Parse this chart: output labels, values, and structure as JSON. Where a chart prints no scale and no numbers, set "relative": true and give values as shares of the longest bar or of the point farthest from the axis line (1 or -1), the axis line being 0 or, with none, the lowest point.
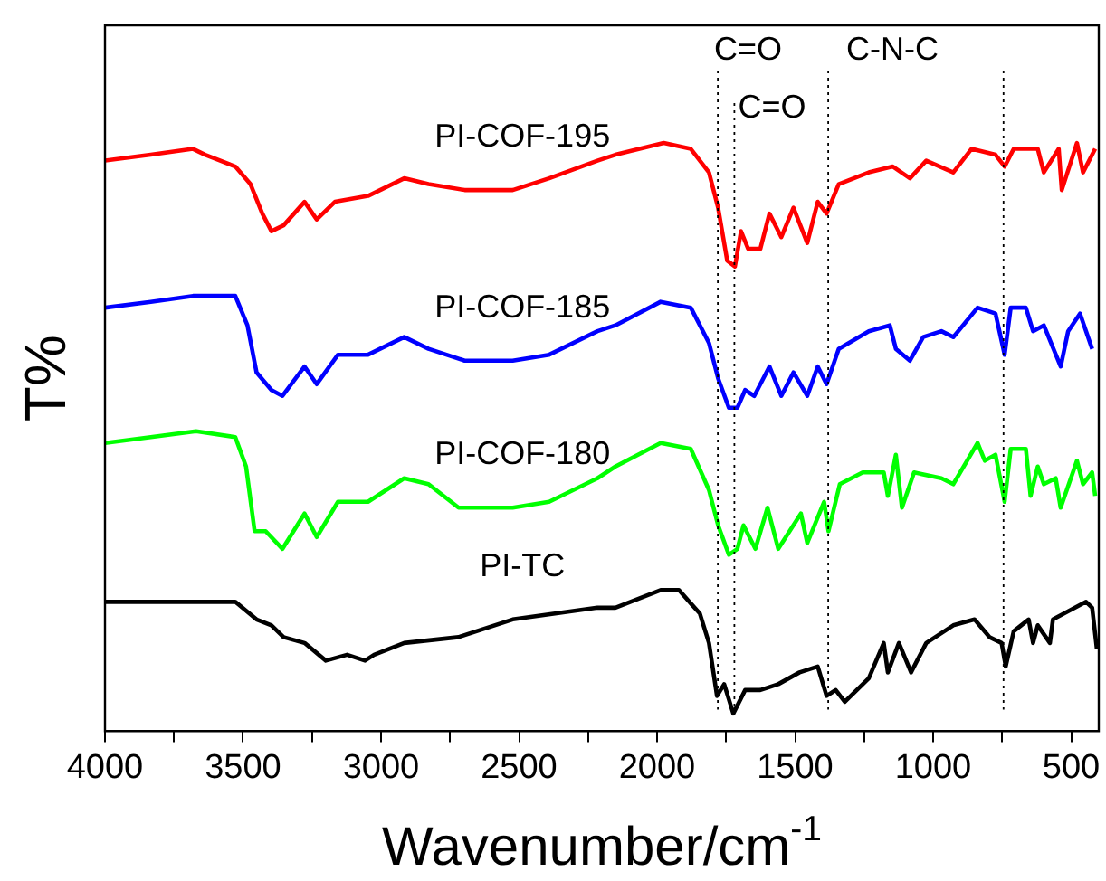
{
  "chart_data": {
    "type": "line",
    "relative": true,
    "xlabel": "Wavenumber/cm$^{-1}$",
    "ylabel": "T%",
    "xlim": [
      4000,
      400
    ],
    "xticks": [
      4000,
      {
        "value": 3750,
        "label": null
      },
      3500,
      {
        "value": 3250,
        "label": null
      },
      3000,
      {
        "value": 2750,
        "label": null
      },
      2500,
      {
        "value": 2250,
        "label": null
      },
      2000,
      {
        "value": 1750,
        "label": null
      },
      1500,
      {
        "value": 1250,
        "label": null
      },
      1000,
      {
        "value": 750,
        "label": null
      },
      500
    ],
    "ref_lines": [
      {
        "axis": "x",
        "value": 1780,
        "label": "C=O",
        "line_style": "dotted"
      },
      {
        "axis": "x",
        "value": 1720,
        "label": "C=O",
        "line_style": "dotted"
      },
      {
        "axis": "x",
        "value": 1380,
        "label": "C-N-C",
        "line_style": "dotted"
      },
      {
        "axis": "x",
        "value": 745,
        "label": null,
        "line_style": "dotted"
      }
    ],
    "series": [
      {
        "name": "PI-COF-195",
        "color": "#ff0000",
        "x": [
          4000,
          3834,
          3681,
          3637,
          3528,
          3473,
          3430,
          3397,
          3353,
          3277,
          3233,
          3167,
          3047,
          2916,
          2828,
          2697,
          2523,
          2391,
          2216,
          2151,
          1976,
          1878,
          1812,
          1779,
          1746,
          1718,
          1696,
          1670,
          1626,
          1593,
          1550,
          1506,
          1456,
          1418,
          1386,
          1342,
          1233,
          1146,
          1084,
          1025,
          927,
          861,
          774,
          741,
          708,
          621,
          599,
          545,
          534,
          479,
          457,
          413
        ],
        "values": [
          0.97,
          0.98,
          0.99,
          0.98,
          0.96,
          0.93,
          0.88,
          0.85,
          0.86,
          0.9,
          0.87,
          0.9,
          0.91,
          0.94,
          0.93,
          0.92,
          0.92,
          0.94,
          0.97,
          0.98,
          1.0,
          0.99,
          0.95,
          0.89,
          0.8,
          0.79,
          0.85,
          0.82,
          0.82,
          0.88,
          0.84,
          0.89,
          0.83,
          0.9,
          0.88,
          0.93,
          0.95,
          0.96,
          0.94,
          0.97,
          0.95,
          0.99,
          0.98,
          0.96,
          0.99,
          0.99,
          0.95,
          0.99,
          0.92,
          1.0,
          0.95,
          0.99
        ]
      },
      {
        "name": "PI-COF-185",
        "color": "#0000ff",
        "x": [
          4000,
          3834,
          3681,
          3528,
          3484,
          3451,
          3397,
          3357,
          3277,
          3233,
          3156,
          3047,
          2916,
          2828,
          2697,
          2523,
          2391,
          2216,
          2151,
          1987,
          1878,
          1812,
          1779,
          1740,
          1709,
          1681,
          1648,
          1593,
          1550,
          1506,
          1456,
          1418,
          1386,
          1342,
          1233,
          1157,
          1135,
          1084,
          1036,
          970,
          927,
          839,
          774,
          741,
          719,
          664,
          638,
          599,
          538,
          511,
          468,
          424
        ],
        "values": [
          0.72,
          0.73,
          0.74,
          0.74,
          0.69,
          0.61,
          0.58,
          0.57,
          0.62,
          0.59,
          0.64,
          0.64,
          0.67,
          0.65,
          0.63,
          0.63,
          0.64,
          0.68,
          0.69,
          0.73,
          0.72,
          0.66,
          0.6,
          0.55,
          0.55,
          0.58,
          0.57,
          0.62,
          0.57,
          0.61,
          0.57,
          0.62,
          0.59,
          0.65,
          0.68,
          0.69,
          0.65,
          0.63,
          0.67,
          0.68,
          0.67,
          0.72,
          0.71,
          0.64,
          0.72,
          0.72,
          0.68,
          0.69,
          0.62,
          0.68,
          0.71,
          0.65
        ]
      },
      {
        "name": "PI-COF-180",
        "color": "#00ff00",
        "x": [
          4000,
          3834,
          3670,
          3528,
          3489,
          3458,
          3418,
          3357,
          3277,
          3233,
          3156,
          3047,
          2916,
          2828,
          2719,
          2523,
          2391,
          2216,
          2151,
          1987,
          1878,
          1812,
          1779,
          1740,
          1709,
          1687,
          1644,
          1600,
          1561,
          1479,
          1456,
          1395,
          1379,
          1338,
          1255,
          1179,
          1164,
          1135,
          1113,
          1069,
          970,
          927,
          839,
          813,
          774,
          741,
          719,
          664,
          647,
          621,
          599,
          556,
          538,
          479,
          457,
          424,
          413
        ],
        "values": [
          0.49,
          0.5,
          0.51,
          0.5,
          0.45,
          0.34,
          0.34,
          0.31,
          0.37,
          0.33,
          0.39,
          0.39,
          0.43,
          0.42,
          0.38,
          0.38,
          0.39,
          0.43,
          0.45,
          0.49,
          0.48,
          0.41,
          0.35,
          0.3,
          0.31,
          0.35,
          0.31,
          0.38,
          0.31,
          0.37,
          0.32,
          0.39,
          0.34,
          0.42,
          0.44,
          0.44,
          0.4,
          0.47,
          0.38,
          0.44,
          0.43,
          0.42,
          0.49,
          0.46,
          0.47,
          0.39,
          0.48,
          0.48,
          0.4,
          0.45,
          0.42,
          0.43,
          0.38,
          0.46,
          0.42,
          0.44,
          0.4
        ]
      },
      {
        "name": "PI-TC",
        "color": "#000000",
        "x": [
          4000,
          3834,
          3681,
          3528,
          3451,
          3397,
          3353,
          3277,
          3200,
          3123,
          3058,
          3025,
          2916,
          2719,
          2523,
          2216,
          2151,
          1987,
          1921,
          1845,
          1812,
          1783,
          1757,
          1724,
          1681,
          1626,
          1561,
          1484,
          1418,
          1386,
          1353,
          1320,
          1233,
          1179,
          1164,
          1124,
          1080,
          1025,
          927,
          850,
          796,
          752,
          737,
          708,
          654,
          638,
          621,
          577,
          566,
          446,
          424,
          407
        ],
        "values": [
          0.22,
          0.22,
          0.22,
          0.22,
          0.19,
          0.18,
          0.16,
          0.15,
          0.12,
          0.13,
          0.12,
          0.13,
          0.15,
          0.16,
          0.19,
          0.21,
          0.21,
          0.24,
          0.24,
          0.2,
          0.15,
          0.06,
          0.08,
          0.03,
          0.07,
          0.07,
          0.08,
          0.1,
          0.11,
          0.06,
          0.07,
          0.05,
          0.09,
          0.15,
          0.1,
          0.15,
          0.1,
          0.15,
          0.18,
          0.19,
          0.16,
          0.15,
          0.11,
          0.17,
          0.19,
          0.15,
          0.18,
          0.15,
          0.19,
          0.22,
          0.21,
          0.14
        ]
      }
    ]
  }
}
